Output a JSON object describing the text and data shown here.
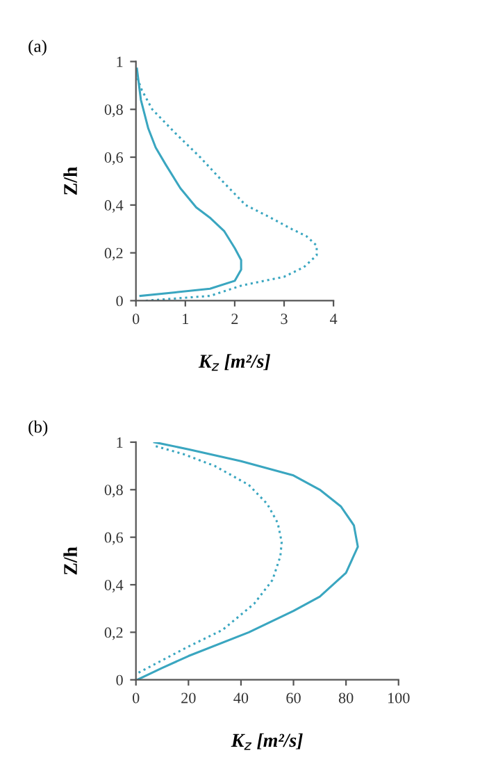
{
  "chart_data": [
    {
      "type": "line",
      "annotations": [
        "(a)"
      ],
      "xlabel": "K$_{z}$ [m²/s]",
      "ylabel": "Z/h",
      "xlim": [
        0,
        4
      ],
      "xticks": [
        0,
        1,
        2,
        3,
        4
      ],
      "ylim": [
        0,
        1
      ],
      "yticks": [
        0,
        {
          "value": 0.2,
          "label": "0,2"
        },
        {
          "value": 0.4,
          "label": "0,4"
        },
        {
          "value": 0.6,
          "label": "0,6"
        },
        {
          "value": 0.8,
          "label": "0,8"
        },
        1
      ],
      "grid": false,
      "legend": false,
      "series": [
        {
          "color": "#3aa6c0",
          "line_style": "solid",
          "x": [
            0.09,
            0.8,
            1.5,
            2.0,
            2.13,
            2.13,
            2.0,
            1.79,
            1.51,
            1.22,
            0.9,
            0.6,
            0.4,
            0.25,
            0.1,
            0.02
          ],
          "values": [
            0.02,
            0.035,
            0.05,
            0.083,
            0.13,
            0.17,
            0.22,
            0.29,
            0.345,
            0.39,
            0.47,
            0.57,
            0.64,
            0.72,
            0.84,
            0.97
          ]
        },
        {
          "color": "#3aa6c0",
          "line_style": "dotted",
          "x": [
            0.2,
            1.5,
            2.15,
            3.0,
            3.4,
            3.66,
            3.66,
            3.45,
            3.15,
            2.7,
            2.22,
            1.75,
            1.3,
            0.8,
            0.33,
            0.12,
            0.03
          ],
          "values": [
            0.0,
            0.02,
            0.064,
            0.1,
            0.14,
            0.19,
            0.23,
            0.27,
            0.3,
            0.35,
            0.4,
            0.5,
            0.6,
            0.7,
            0.8,
            0.88,
            0.93
          ]
        }
      ]
    },
    {
      "type": "line",
      "annotations": [
        "(b)"
      ],
      "xlabel": "K$_{z}$ [m²/s]",
      "ylabel": "Z/h",
      "xlim": [
        0,
        100
      ],
      "xticks": [
        0,
        20,
        40,
        60,
        80,
        100
      ],
      "ylim": [
        0,
        1
      ],
      "yticks": [
        0,
        {
          "value": 0.2,
          "label": "0,2"
        },
        {
          "value": 0.4,
          "label": "0,4"
        },
        {
          "value": 0.6,
          "label": "0,6"
        },
        {
          "value": 0.8,
          "label": "0,8"
        },
        1
      ],
      "grid": false,
      "legend": false,
      "series": [
        {
          "color": "#3aa6c0",
          "line_style": "solid",
          "x": [
            0.5,
            10,
            20,
            43,
            60,
            70,
            80,
            84.5,
            83,
            78,
            70,
            60,
            40,
            20,
            7
          ],
          "values": [
            0.0,
            0.05,
            0.1,
            0.2,
            0.29,
            0.35,
            0.45,
            0.56,
            0.65,
            0.73,
            0.8,
            0.86,
            0.92,
            0.97,
            1.0
          ]
        },
        {
          "color": "#3aa6c0",
          "line_style": "dotted",
          "x": [
            1,
            20,
            33,
            45,
            52,
            55,
            55.5,
            54,
            50,
            43,
            30,
            18,
            7
          ],
          "values": [
            0.03,
            0.14,
            0.21,
            0.32,
            0.42,
            0.52,
            0.58,
            0.66,
            0.74,
            0.82,
            0.9,
            0.95,
            0.985
          ]
        }
      ]
    }
  ]
}
